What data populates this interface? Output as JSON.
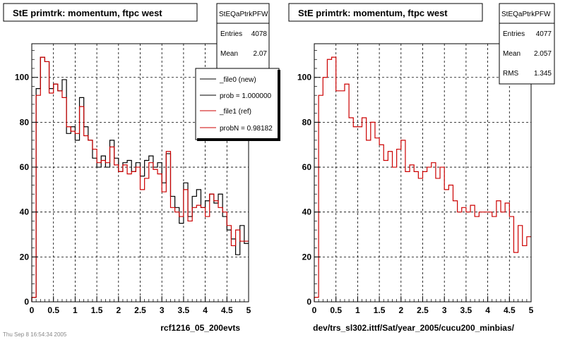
{
  "chart_data": [
    {
      "type": "histogram",
      "title": "StE primtrk: momentum, ftpc west",
      "xlabel": "rcf1216_05_200evts",
      "xlim": [
        0,
        5
      ],
      "ylim": [
        0,
        115
      ],
      "grid": true,
      "bin_width": 0.1,
      "x_ticks": [
        "0",
        "0.5",
        "1",
        "1.5",
        "2",
        "2.5",
        "3",
        "3.5",
        "4",
        "4.5",
        "5"
      ],
      "y_ticks": [
        "0",
        "20",
        "40",
        "60",
        "80",
        "100"
      ],
      "stats": {
        "name": "StEQaPtrkPFW",
        "entries_label": "Entries",
        "entries": "4078",
        "mean_label": "Mean",
        "mean": "2.07"
      },
      "legend": {
        "placement": "top-right",
        "entries": [
          {
            "label": "_file0 (new)",
            "color": "#000000"
          },
          {
            "label": "prob = 1.000000",
            "color": "#000000"
          },
          {
            "label": "_file1 (ref)",
            "color": "#cc0000"
          },
          {
            "label": "probN = 0.98182",
            "color": "#cc0000"
          }
        ]
      },
      "series": [
        {
          "name": "_file0 (new)",
          "color": "#000000",
          "values": [
            2,
            95,
            109,
            107,
            95,
            97,
            94,
            99,
            75,
            78,
            72,
            91,
            78,
            72,
            64,
            60,
            65,
            60,
            72,
            64,
            58,
            62,
            63,
            58,
            62,
            56,
            63,
            65,
            60,
            62,
            53,
            66,
            47,
            42,
            35,
            53,
            38,
            47,
            50,
            42,
            45,
            48,
            44,
            48,
            38,
            32,
            28,
            21,
            34,
            26
          ]
        },
        {
          "name": "_file1 (ref)",
          "color": "#cc0000",
          "values": [
            2,
            92,
            109,
            107,
            93,
            97,
            94,
            91,
            78,
            76,
            75,
            87,
            74,
            72,
            68,
            62,
            63,
            62,
            69,
            61,
            58,
            61,
            57,
            58,
            60,
            50,
            55,
            62,
            59,
            57,
            49,
            67,
            42,
            40,
            38,
            50,
            36,
            42,
            43,
            42,
            38,
            48,
            45,
            42,
            40,
            34,
            25,
            32,
            27,
            27
          ]
        }
      ]
    },
    {
      "type": "histogram",
      "title": "StE primtrk: momentum, ftpc west",
      "xlabel": "dev/trs_sl302.ittf/Sat/year_2005/cucu200_minbias/",
      "xlim": [
        0,
        5
      ],
      "ylim": [
        0,
        115
      ],
      "grid": true,
      "bin_width": 0.1,
      "x_ticks": [
        "0",
        "0.5",
        "1",
        "1.5",
        "2",
        "2.5",
        "3",
        "3.5",
        "4",
        "4.5",
        "5"
      ],
      "y_ticks": [
        "0",
        "20",
        "40",
        "60",
        "80",
        "100"
      ],
      "stats": {
        "name": "StEQaPtrkPFW",
        "entries_label": "Entries",
        "entries": "4077",
        "mean_label": "Mean",
        "mean": "2.057",
        "rms_label": "RMS",
        "rms": "1.345"
      },
      "series": [
        {
          "name": "",
          "color": "#cc0000",
          "values": [
            2,
            92,
            100,
            108,
            109,
            94,
            94,
            97,
            82,
            78,
            78,
            82,
            72,
            80,
            73,
            70,
            63,
            67,
            60,
            68,
            72,
            58,
            61,
            58,
            55,
            58,
            60,
            62,
            55,
            60,
            50,
            52,
            45,
            40,
            42,
            40,
            43,
            38,
            40,
            40,
            40,
            38,
            45,
            40,
            44,
            38,
            22,
            34,
            25,
            29
          ]
        }
      ]
    }
  ],
  "footer_text": "Thu Sep  8 16:54:34 2005"
}
